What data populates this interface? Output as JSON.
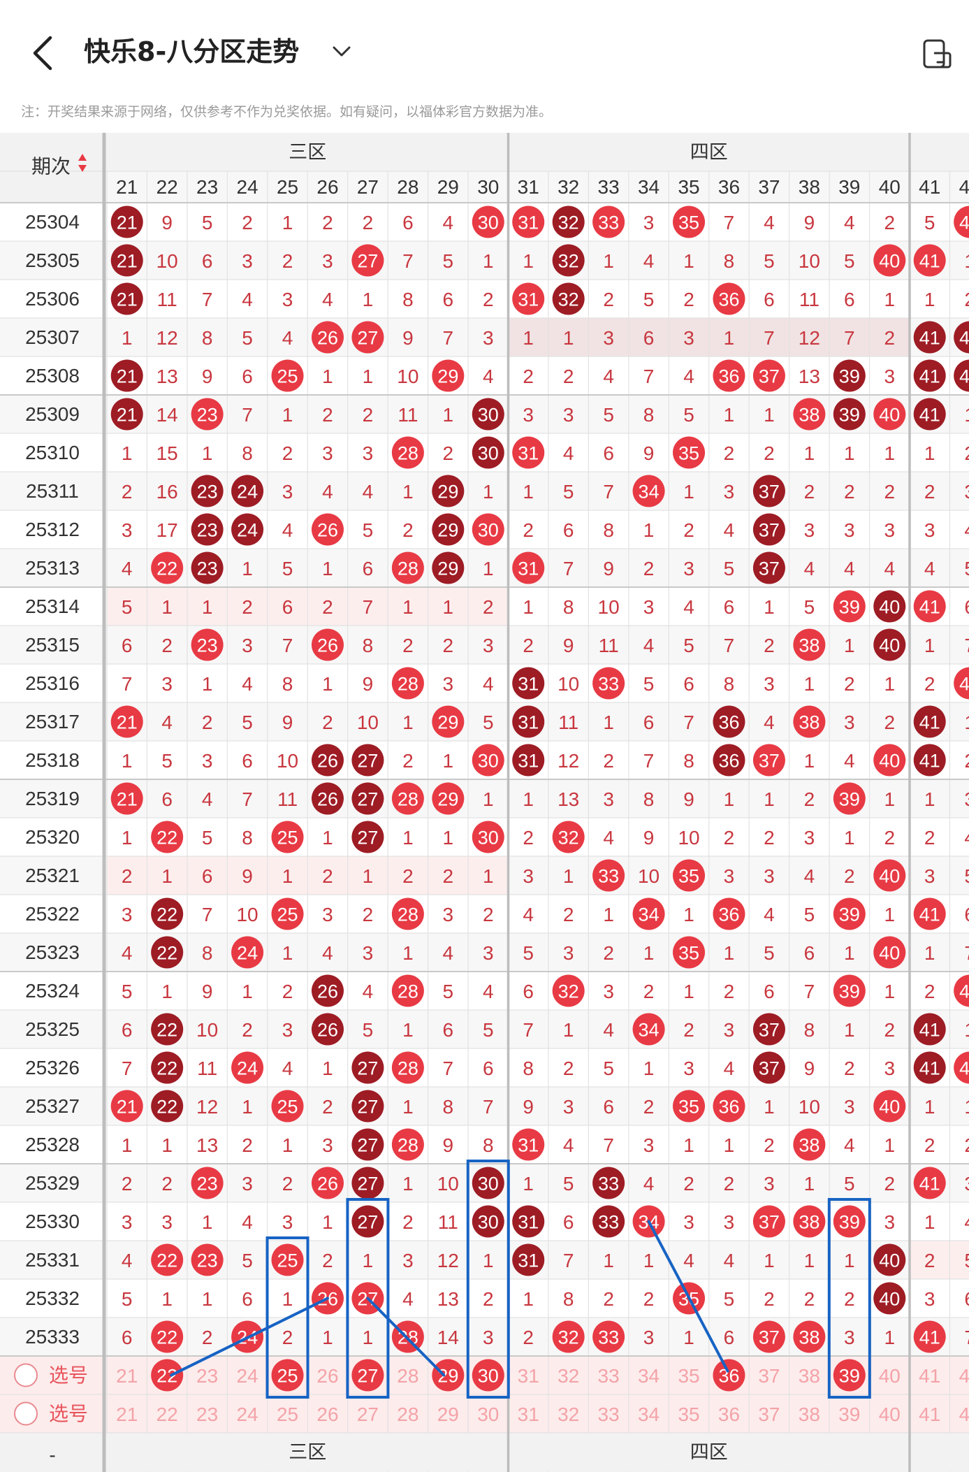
{
  "header": {
    "title": "快乐8-八分区走势",
    "back_icon": "chevron-left-icon",
    "dropdown_icon": "chevron-down-icon",
    "screen_icon": "split-screen-icon"
  },
  "notice": "注：开奖结果来源于网络，仅供参考不作为兑奖依据。如有疑问，以福体彩官方数据为准。",
  "table": {
    "period_header": "期次",
    "sort_icon": "sort-arrows-icon",
    "zones": [
      "三区",
      "四区"
    ],
    "columns": [
      "21",
      "22",
      "23",
      "24",
      "25",
      "26",
      "27",
      "28",
      "29",
      "30",
      "31",
      "32",
      "33",
      "34",
      "35",
      "36",
      "37",
      "38",
      "39",
      "40",
      "41",
      "42"
    ],
    "rows": [
      {
        "period": "25304",
        "cells": [
          "21",
          "9",
          "5",
          "2",
          "1",
          "2",
          "2",
          "6",
          "4",
          "30",
          "31",
          "32",
          "33",
          "3",
          "35",
          "7",
          "4",
          "9",
          "4",
          "2",
          "5",
          "42"
        ]
      },
      {
        "period": "25305",
        "cells": [
          "21",
          "10",
          "6",
          "3",
          "2",
          "3",
          "27",
          "7",
          "5",
          "1",
          "1",
          "32",
          "1",
          "4",
          "1",
          "8",
          "5",
          "10",
          "5",
          "40",
          "41",
          "1"
        ]
      },
      {
        "period": "25306",
        "cells": [
          "21",
          "11",
          "7",
          "4",
          "3",
          "4",
          "1",
          "8",
          "6",
          "2",
          "31",
          "32",
          "2",
          "5",
          "2",
          "36",
          "6",
          "11",
          "6",
          "1",
          "1",
          "2"
        ]
      },
      {
        "period": "25307",
        "cells": [
          "1",
          "12",
          "8",
          "5",
          "4",
          "26",
          "27",
          "9",
          "7",
          "3",
          "1",
          "1",
          "3",
          "6",
          "3",
          "1",
          "7",
          "12",
          "7",
          "2",
          "41",
          "42"
        ]
      },
      {
        "period": "25308",
        "cells": [
          "21",
          "13",
          "9",
          "6",
          "25",
          "1",
          "1",
          "10",
          "29",
          "4",
          "2",
          "2",
          "4",
          "7",
          "4",
          "36",
          "37",
          "13",
          "39",
          "3",
          "41",
          "42"
        ]
      },
      {
        "period": "25309",
        "cells": [
          "21",
          "14",
          "23",
          "7",
          "1",
          "2",
          "2",
          "11",
          "1",
          "30",
          "3",
          "3",
          "5",
          "8",
          "5",
          "1",
          "1",
          "38",
          "39",
          "40",
          "41",
          "1"
        ]
      },
      {
        "period": "25310",
        "cells": [
          "1",
          "15",
          "1",
          "8",
          "2",
          "3",
          "3",
          "28",
          "2",
          "30",
          "31",
          "4",
          "6",
          "9",
          "35",
          "2",
          "2",
          "1",
          "1",
          "1",
          "1",
          "2"
        ]
      },
      {
        "period": "25311",
        "cells": [
          "2",
          "16",
          "23",
          "24",
          "3",
          "4",
          "4",
          "1",
          "29",
          "1",
          "1",
          "5",
          "7",
          "34",
          "1",
          "3",
          "37",
          "2",
          "2",
          "2",
          "2",
          "3"
        ]
      },
      {
        "period": "25312",
        "cells": [
          "3",
          "17",
          "23",
          "24",
          "4",
          "26",
          "5",
          "2",
          "29",
          "30",
          "2",
          "6",
          "8",
          "1",
          "2",
          "4",
          "37",
          "3",
          "3",
          "3",
          "3",
          "4"
        ]
      },
      {
        "period": "25313",
        "cells": [
          "4",
          "22",
          "23",
          "1",
          "5",
          "1",
          "6",
          "28",
          "29",
          "1",
          "31",
          "7",
          "9",
          "2",
          "3",
          "5",
          "37",
          "4",
          "4",
          "4",
          "4",
          "5"
        ]
      },
      {
        "period": "25314",
        "cells": [
          "5",
          "1",
          "1",
          "2",
          "6",
          "2",
          "7",
          "1",
          "1",
          "2",
          "1",
          "8",
          "10",
          "3",
          "4",
          "6",
          "1",
          "5",
          "39",
          "40",
          "41",
          "6"
        ]
      },
      {
        "period": "25315",
        "cells": [
          "6",
          "2",
          "23",
          "3",
          "7",
          "26",
          "8",
          "2",
          "2",
          "3",
          "2",
          "9",
          "11",
          "4",
          "5",
          "7",
          "2",
          "38",
          "1",
          "40",
          "1",
          "7"
        ]
      },
      {
        "period": "25316",
        "cells": [
          "7",
          "3",
          "1",
          "4",
          "8",
          "1",
          "9",
          "28",
          "3",
          "4",
          "31",
          "10",
          "33",
          "5",
          "6",
          "8",
          "3",
          "1",
          "2",
          "1",
          "2",
          "42"
        ]
      },
      {
        "period": "25317",
        "cells": [
          "21",
          "4",
          "2",
          "5",
          "9",
          "2",
          "10",
          "1",
          "29",
          "5",
          "31",
          "11",
          "1",
          "6",
          "7",
          "36",
          "4",
          "38",
          "3",
          "2",
          "41",
          "1"
        ]
      },
      {
        "period": "25318",
        "cells": [
          "1",
          "5",
          "3",
          "6",
          "10",
          "26",
          "27",
          "2",
          "1",
          "30",
          "31",
          "12",
          "2",
          "7",
          "8",
          "36",
          "37",
          "1",
          "4",
          "40",
          "41",
          "2"
        ]
      },
      {
        "period": "25319",
        "cells": [
          "21",
          "6",
          "4",
          "7",
          "11",
          "26",
          "27",
          "28",
          "29",
          "1",
          "1",
          "13",
          "3",
          "8",
          "9",
          "1",
          "1",
          "2",
          "39",
          "1",
          "1",
          "3"
        ]
      },
      {
        "period": "25320",
        "cells": [
          "1",
          "22",
          "5",
          "8",
          "25",
          "1",
          "27",
          "1",
          "1",
          "30",
          "2",
          "32",
          "4",
          "9",
          "10",
          "2",
          "2",
          "3",
          "1",
          "2",
          "2",
          "4"
        ]
      },
      {
        "period": "25321",
        "cells": [
          "2",
          "1",
          "6",
          "9",
          "1",
          "2",
          "1",
          "2",
          "2",
          "1",
          "3",
          "1",
          "33",
          "10",
          "35",
          "3",
          "3",
          "4",
          "2",
          "40",
          "3",
          "5"
        ]
      },
      {
        "period": "25322",
        "cells": [
          "3",
          "22",
          "7",
          "10",
          "25",
          "3",
          "2",
          "28",
          "3",
          "2",
          "4",
          "2",
          "1",
          "34",
          "1",
          "36",
          "4",
          "5",
          "39",
          "1",
          "41",
          "6"
        ]
      },
      {
        "period": "25323",
        "cells": [
          "4",
          "22",
          "8",
          "24",
          "1",
          "4",
          "3",
          "1",
          "4",
          "3",
          "5",
          "3",
          "2",
          "1",
          "35",
          "1",
          "5",
          "6",
          "1",
          "40",
          "1",
          "7"
        ]
      },
      {
        "period": "25324",
        "cells": [
          "5",
          "1",
          "9",
          "1",
          "2",
          "26",
          "4",
          "28",
          "5",
          "4",
          "6",
          "32",
          "3",
          "2",
          "1",
          "2",
          "6",
          "7",
          "39",
          "1",
          "2",
          "42"
        ]
      },
      {
        "period": "25325",
        "cells": [
          "6",
          "22",
          "10",
          "2",
          "3",
          "26",
          "5",
          "1",
          "6",
          "5",
          "7",
          "1",
          "4",
          "34",
          "2",
          "3",
          "37",
          "8",
          "1",
          "2",
          "41",
          "1"
        ]
      },
      {
        "period": "25326",
        "cells": [
          "7",
          "22",
          "11",
          "24",
          "4",
          "1",
          "27",
          "28",
          "7",
          "6",
          "8",
          "2",
          "5",
          "1",
          "3",
          "4",
          "37",
          "9",
          "2",
          "3",
          "41",
          "42"
        ]
      },
      {
        "period": "25327",
        "cells": [
          "21",
          "22",
          "12",
          "1",
          "25",
          "2",
          "27",
          "1",
          "8",
          "7",
          "9",
          "3",
          "6",
          "2",
          "35",
          "36",
          "1",
          "10",
          "3",
          "40",
          "1",
          "1"
        ]
      },
      {
        "period": "25328",
        "cells": [
          "1",
          "1",
          "13",
          "2",
          "1",
          "3",
          "27",
          "28",
          "9",
          "8",
          "31",
          "4",
          "7",
          "3",
          "1",
          "1",
          "2",
          "38",
          "4",
          "1",
          "2",
          "2"
        ]
      },
      {
        "period": "25329",
        "cells": [
          "2",
          "2",
          "23",
          "3",
          "2",
          "26",
          "27",
          "1",
          "10",
          "30",
          "1",
          "5",
          "33",
          "4",
          "2",
          "2",
          "3",
          "1",
          "5",
          "2",
          "41",
          "3"
        ]
      },
      {
        "period": "25330",
        "cells": [
          "3",
          "3",
          "1",
          "4",
          "3",
          "1",
          "27",
          "2",
          "11",
          "30",
          "31",
          "6",
          "33",
          "34",
          "3",
          "3",
          "37",
          "38",
          "39",
          "3",
          "1",
          "4"
        ]
      },
      {
        "period": "25331",
        "cells": [
          "4",
          "22",
          "23",
          "5",
          "25",
          "2",
          "1",
          "3",
          "12",
          "1",
          "31",
          "7",
          "1",
          "1",
          "4",
          "4",
          "1",
          "1",
          "1",
          "40",
          "2",
          "5"
        ]
      },
      {
        "period": "25332",
        "cells": [
          "5",
          "1",
          "1",
          "6",
          "1",
          "26",
          "27",
          "4",
          "13",
          "2",
          "1",
          "8",
          "2",
          "2",
          "35",
          "5",
          "2",
          "2",
          "2",
          "40",
          "3",
          "6"
        ]
      },
      {
        "period": "25333",
        "cells": [
          "6",
          "22",
          "2",
          "24",
          "2",
          "1",
          "1",
          "28",
          "14",
          "3",
          "2",
          "32",
          "33",
          "3",
          "1",
          "6",
          "37",
          "38",
          "3",
          "1",
          "41",
          "7"
        ]
      }
    ],
    "select_label": "选号",
    "footer_period": "-"
  },
  "colors": {
    "hit": "#e83a44",
    "hit_dark": "#9e1c24",
    "miss_text": "#c8373f",
    "select_text": "#f3a3a8",
    "mark_blue": "#1763c4",
    "grid": "#e2e2e2",
    "header_bg": "#f2f2f2"
  }
}
